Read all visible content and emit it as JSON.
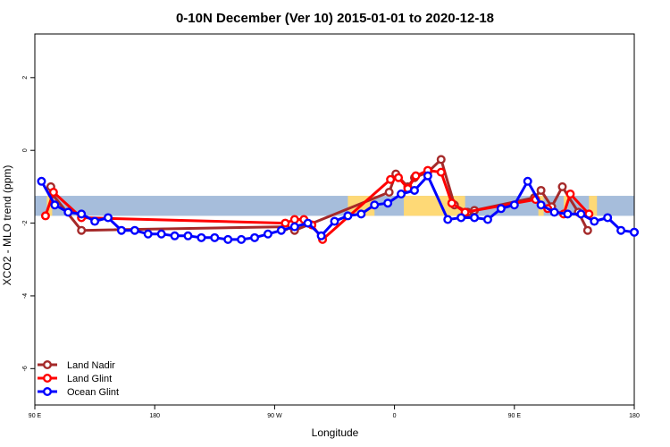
{
  "chart_data": {
    "type": "line",
    "title": "0-10N December (Ver 10)   2015-01-01 to 2020-12-18",
    "xlabel": "Longitude",
    "ylabel": "XCO2 - MLO trend (ppm)",
    "xlim": [
      90,
      540
    ],
    "ylim": [
      -7,
      3.2
    ],
    "x_ticks": [
      {
        "value": 90,
        "label": "90 E"
      },
      {
        "value": 180,
        "label": "180"
      },
      {
        "value": 270,
        "label": "90 W"
      },
      {
        "value": 360,
        "label": "0"
      },
      {
        "value": 450,
        "label": "90 E"
      },
      {
        "value": 540,
        "label": "180"
      }
    ],
    "y_ticks": [
      {
        "value": 2,
        "label": "2"
      },
      {
        "value": 0,
        "label": "0"
      },
      {
        "value": -2,
        "label": "-2"
      },
      {
        "value": -4,
        "label": "-4"
      },
      {
        "value": -6,
        "label": "-6"
      }
    ],
    "map_band": {
      "y_range": [
        -1.8,
        -1.25
      ],
      "ocean_color": "#a6bddb",
      "land_color": "#fed976",
      "land_segments": [
        [
          325,
          345
        ],
        [
          367,
          413
        ],
        [
          468,
          472
        ],
        [
          487,
          490
        ],
        [
          506,
          512
        ],
        [
          99,
          103
        ]
      ]
    },
    "legend": {
      "position": "bottom-left"
    },
    "series": [
      {
        "name": "Land Nadir",
        "color": "#a52a2a",
        "points": [
          [
            102,
            -1.0
          ],
          [
            103,
            -1.2
          ],
          [
            125,
            -2.2
          ],
          [
            278,
            -2.1
          ],
          [
            285,
            -2.2
          ],
          [
            356,
            -1.15
          ],
          [
            361,
            -0.65
          ],
          [
            370,
            -1.0
          ],
          [
            375,
            -0.75
          ],
          [
            385,
            -0.6
          ],
          [
            395,
            -0.25
          ],
          [
            405,
            -1.5
          ],
          [
            415,
            -1.7
          ],
          [
            420,
            -1.65
          ],
          [
            465,
            -1.3
          ],
          [
            470,
            -1.1
          ],
          [
            478,
            -1.55
          ],
          [
            486,
            -1.0
          ],
          [
            498,
            -1.7
          ],
          [
            505,
            -2.2
          ]
        ]
      },
      {
        "name": "Land Glint",
        "color": "#ff0000",
        "points": [
          [
            98,
            -1.8
          ],
          [
            104,
            -1.15
          ],
          [
            125,
            -1.85
          ],
          [
            278,
            -2.0
          ],
          [
            285,
            -1.9
          ],
          [
            292,
            -1.9
          ],
          [
            298,
            -2.05
          ],
          [
            306,
            -2.45
          ],
          [
            357,
            -0.8
          ],
          [
            363,
            -0.75
          ],
          [
            370,
            -1.05
          ],
          [
            376,
            -0.7
          ],
          [
            385,
            -0.55
          ],
          [
            395,
            -0.6
          ],
          [
            403,
            -1.45
          ],
          [
            413,
            -1.7
          ],
          [
            466,
            -1.35
          ],
          [
            475,
            -1.6
          ],
          [
            487,
            -1.75
          ],
          [
            492,
            -1.2
          ],
          [
            506,
            -1.75
          ]
        ]
      },
      {
        "name": "Ocean Glint",
        "color": "#0000ff",
        "points": [
          [
            95,
            -0.85
          ],
          [
            105,
            -1.5
          ],
          [
            115,
            -1.7
          ],
          [
            125,
            -1.75
          ],
          [
            135,
            -1.95
          ],
          [
            145,
            -1.85
          ],
          [
            155,
            -2.2
          ],
          [
            165,
            -2.2
          ],
          [
            175,
            -2.3
          ],
          [
            185,
            -2.3
          ],
          [
            195,
            -2.35
          ],
          [
            205,
            -2.35
          ],
          [
            215,
            -2.4
          ],
          [
            225,
            -2.4
          ],
          [
            235,
            -2.45
          ],
          [
            245,
            -2.45
          ],
          [
            255,
            -2.4
          ],
          [
            265,
            -2.3
          ],
          [
            275,
            -2.2
          ],
          [
            285,
            -2.1
          ],
          [
            295,
            -2.0
          ],
          [
            305,
            -2.35
          ],
          [
            315,
            -1.95
          ],
          [
            325,
            -1.8
          ],
          [
            335,
            -1.75
          ],
          [
            345,
            -1.5
          ],
          [
            355,
            -1.45
          ],
          [
            365,
            -1.2
          ],
          [
            375,
            -1.1
          ],
          [
            385,
            -0.7
          ],
          [
            400,
            -1.9
          ],
          [
            410,
            -1.85
          ],
          [
            420,
            -1.85
          ],
          [
            430,
            -1.9
          ],
          [
            440,
            -1.6
          ],
          [
            450,
            -1.5
          ],
          [
            460,
            -0.85
          ],
          [
            470,
            -1.5
          ],
          [
            480,
            -1.7
          ],
          [
            490,
            -1.75
          ],
          [
            500,
            -1.75
          ],
          [
            510,
            -1.95
          ],
          [
            520,
            -1.85
          ],
          [
            530,
            -2.2
          ],
          [
            540,
            -2.25
          ],
          [
            550,
            -2.25
          ]
        ]
      }
    ]
  }
}
